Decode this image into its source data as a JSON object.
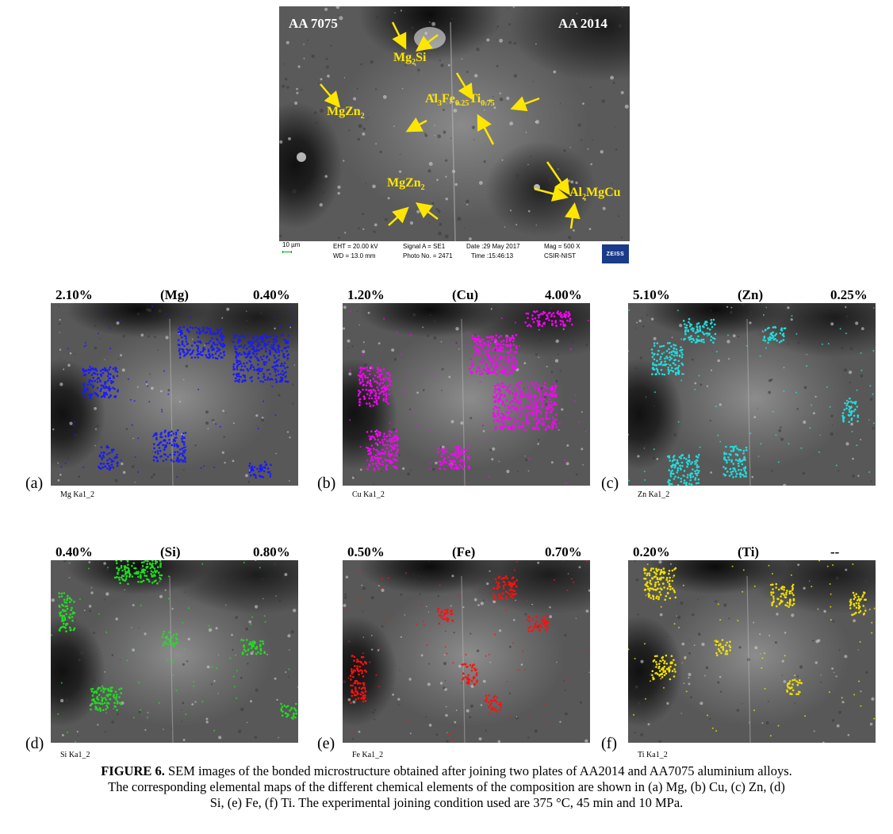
{
  "sem": {
    "left_alloy": "AA 7075",
    "right_alloy": "AA 2014",
    "phases": {
      "mg2si": {
        "base1": "Mg",
        "sub1": "2",
        "base2": "Si"
      },
      "mgzn2_left": {
        "base1": "MgZn",
        "sub1": "2"
      },
      "alfeti": {
        "base1": "Al",
        "sub1": "3",
        "base2": "Fe",
        "sub2": "0.25",
        "base3": "Ti",
        "sub3": "0.75"
      },
      "mgzn2_bottom": {
        "base1": "MgZn",
        "sub1": "2"
      },
      "al2mgcu": {
        "base1": "Al",
        "sub1": "2",
        "base2": "MgCu"
      }
    },
    "footer": {
      "scale": "10 µm",
      "eht": "EHT = 20.00 kV",
      "wd": "WD = 13.0 mm",
      "signal": "Signal A = SE1",
      "photo": "Photo No. = 2471",
      "date": "Date :29 May 2017",
      "time": "Time :15:46:13",
      "mag": "Mag =   500 X",
      "lab": "CSIR-NIST",
      "logo": "ZEISS"
    },
    "arrow_color": "#ffe600"
  },
  "panels": [
    {
      "letter": "(a)",
      "left_pct": "2.10%",
      "element": "(Mg)",
      "right_pct": "0.40%",
      "sublabel": "Mg Ka1_2",
      "color": "#1a1aff"
    },
    {
      "letter": "(b)",
      "left_pct": "1.20%",
      "element": "(Cu)",
      "right_pct": "4.00%",
      "sublabel": "Cu Ka1_2",
      "color": "#ff00ff"
    },
    {
      "letter": "(c)",
      "left_pct": "5.10%",
      "element": "(Zn)",
      "right_pct": "0.25%",
      "sublabel": "Zn Ka1_2",
      "color": "#22dddd"
    },
    {
      "letter": "(d)",
      "left_pct": "0.40%",
      "element": "(Si)",
      "right_pct": "0.80%",
      "sublabel": "Si Ka1_2",
      "color": "#22dd22"
    },
    {
      "letter": "(e)",
      "left_pct": "0.50%",
      "element": "(Fe)",
      "right_pct": "0.70%",
      "sublabel": "Fe Ka1_2",
      "color": "#ff1010"
    },
    {
      "letter": "(f)",
      "left_pct": "0.20%",
      "element": "(Ti)",
      "right_pct": "--",
      "sublabel": "Ti Ka1_2",
      "color": "#f0e000"
    }
  ],
  "caption": {
    "figure_label": "FIGURE 6.",
    "line1": " SEM images of the bonded microstructure obtained after joining two plates of AA2014 and AA7075 aluminium alloys.",
    "line2": "The corresponding elemental maps of the different chemical elements of the composition are shown in (a) Mg, (b) Cu, (c) Zn, (d)",
    "line3": "Si, (e) Fe, (f) Ti. The experimental joining condition used are 375 °C, 45 min and 10 MPa."
  }
}
